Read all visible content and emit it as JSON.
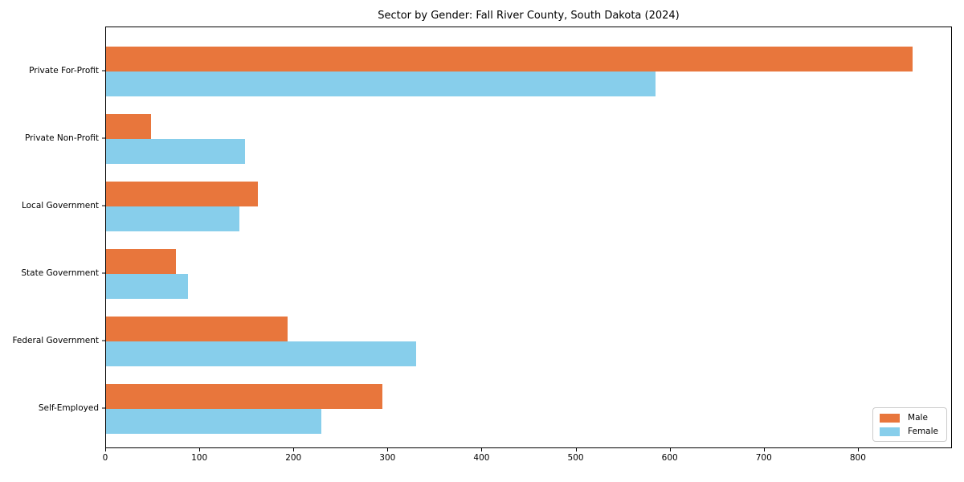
{
  "chart_data": {
    "type": "bar",
    "orientation": "horizontal",
    "title": "Sector by Gender: Fall River County, South Dakota (2024)",
    "categories": [
      "Private For-Profit",
      "Private Non-Profit",
      "Local Government",
      "State Government",
      "Federal Government",
      "Self-Employed"
    ],
    "series": [
      {
        "name": "Male",
        "color": "#e8763c",
        "values": [
          857,
          48,
          161,
          74,
          193,
          294
        ]
      },
      {
        "name": "Female",
        "color": "#87ceeb",
        "values": [
          584,
          148,
          142,
          87,
          330,
          229
        ]
      }
    ],
    "xlabel": "",
    "ylabel": "",
    "xlim": [
      0,
      900
    ],
    "xticks": [
      0,
      100,
      200,
      300,
      400,
      500,
      600,
      700,
      800
    ],
    "grid": false,
    "legend_position": "lower right"
  }
}
